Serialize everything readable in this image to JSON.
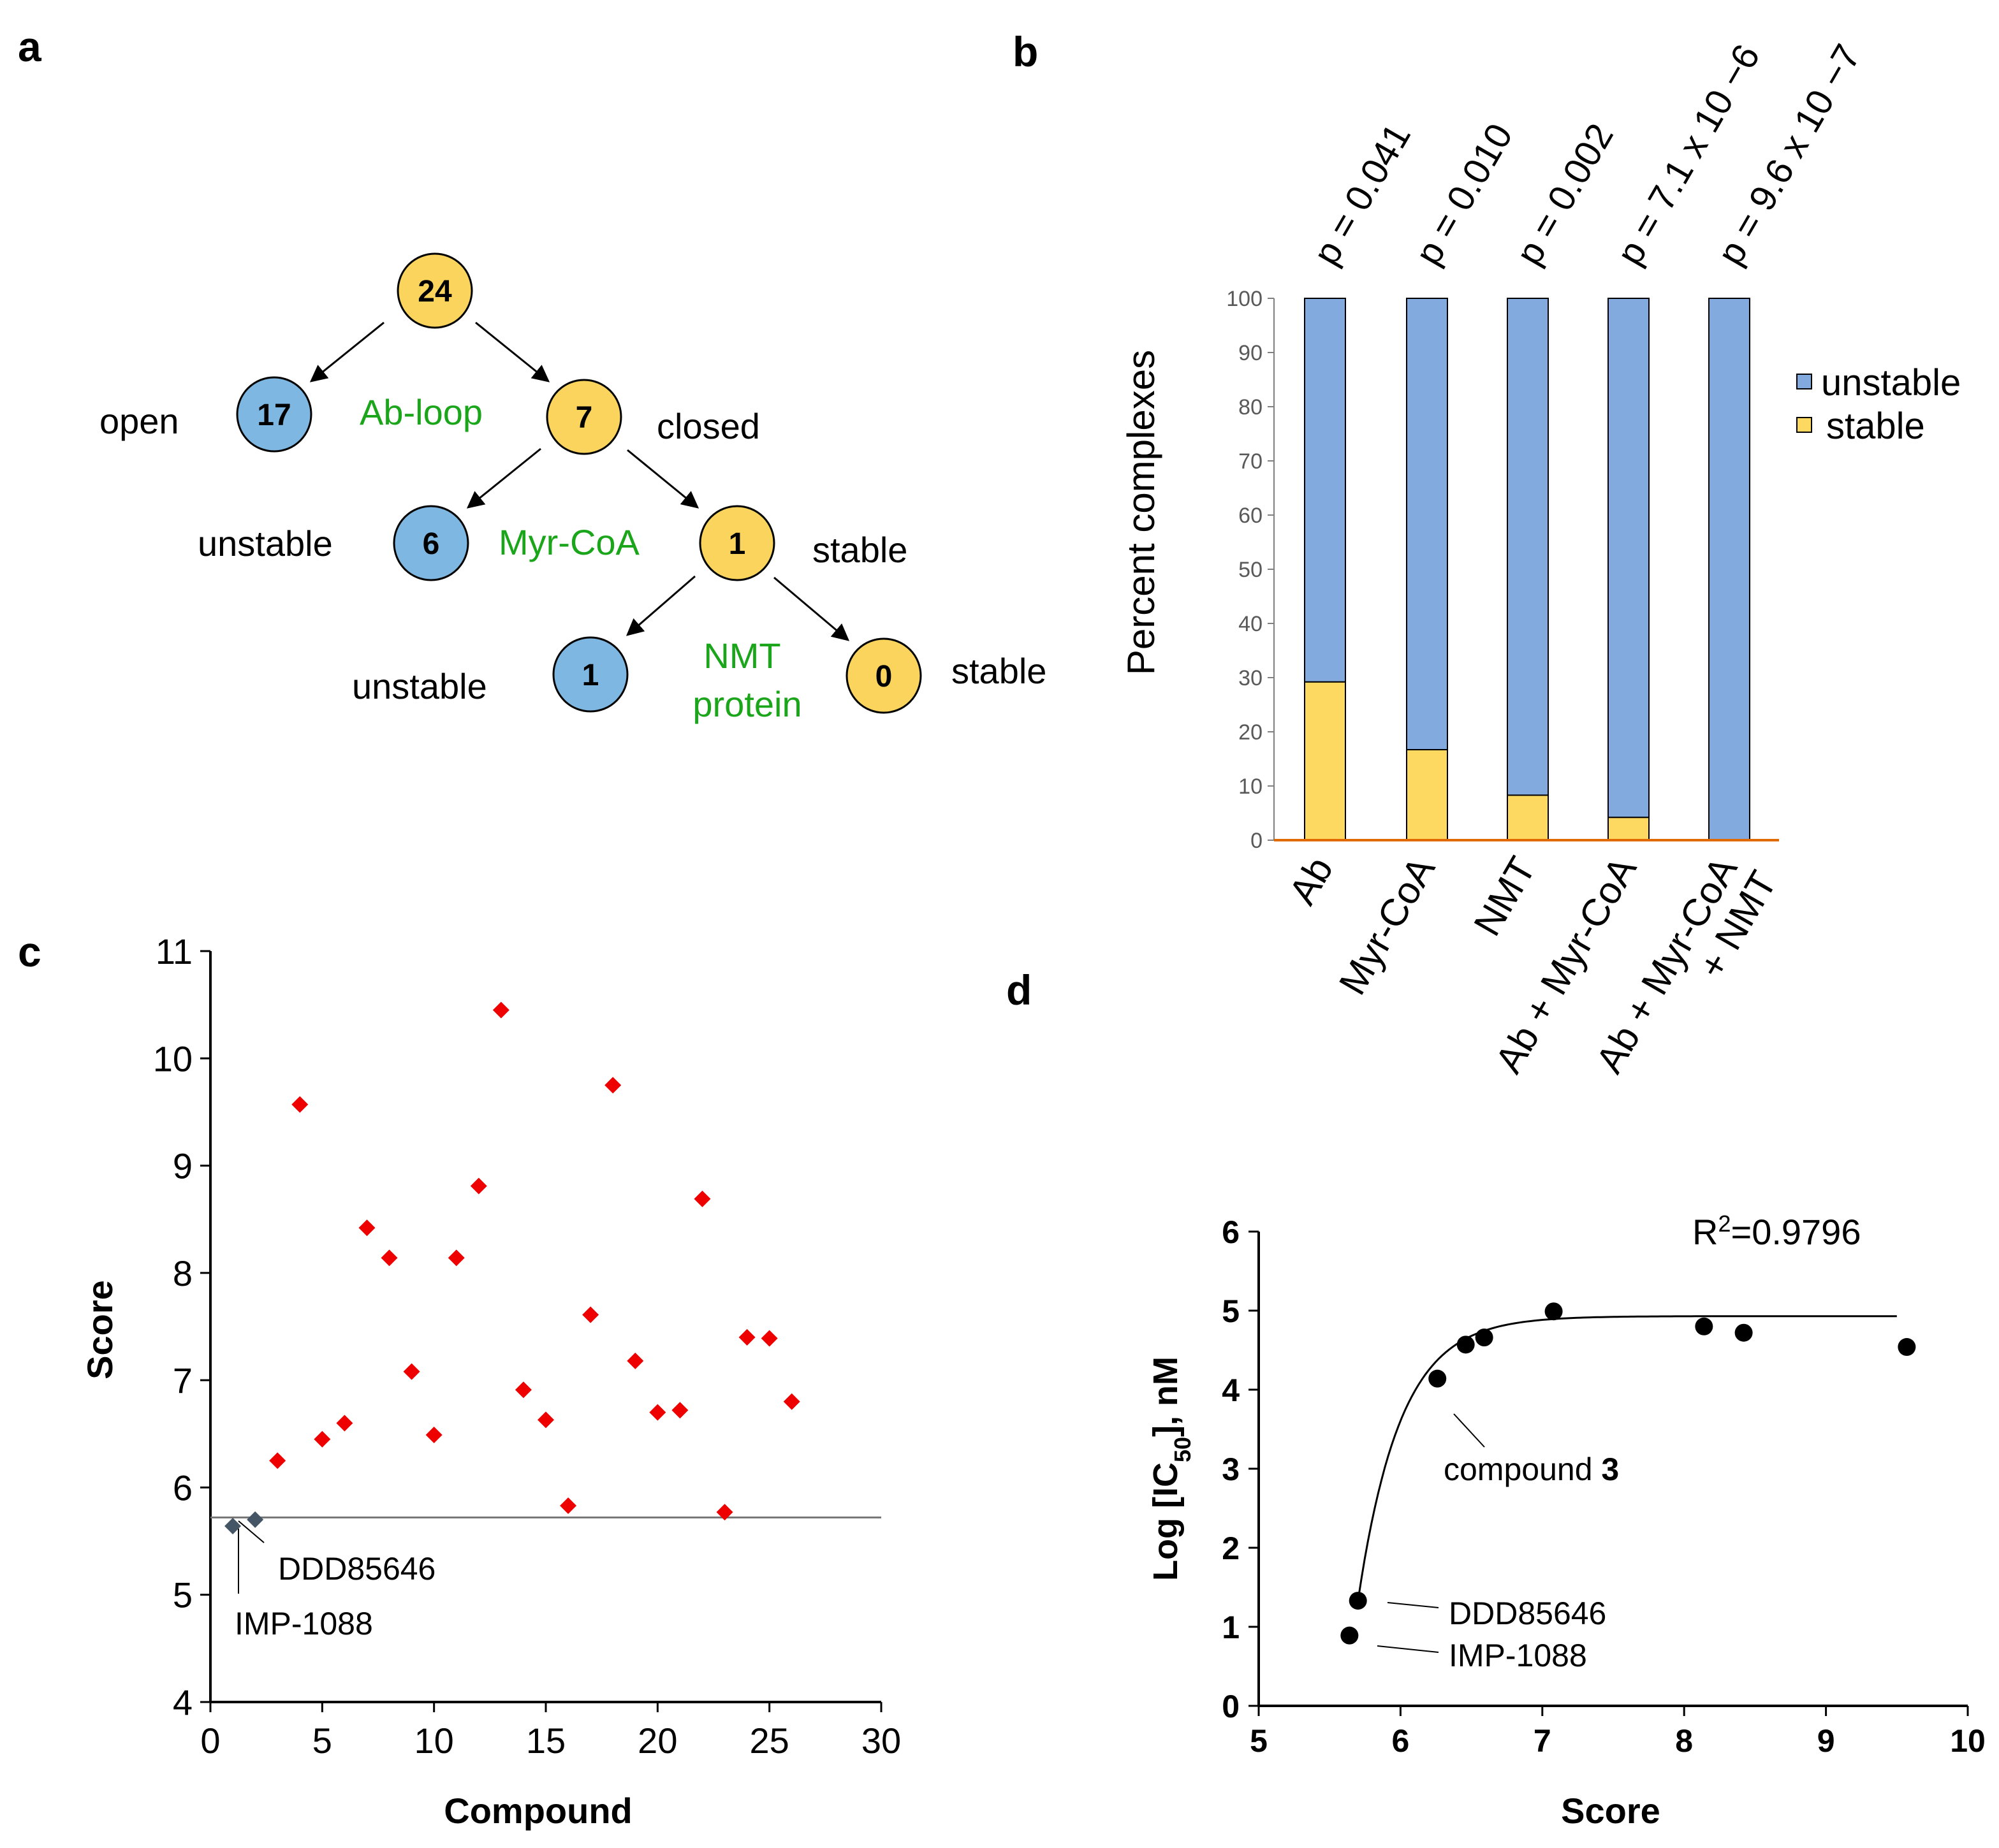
{
  "panels": {
    "a": {
      "letter": "a",
      "tree": {
        "nodes": [
          {
            "id": "root",
            "value": "24",
            "kind": "yellow"
          },
          {
            "id": "open",
            "value": "17",
            "kind": "blue"
          },
          {
            "id": "closed",
            "value": "7",
            "kind": "yellow"
          },
          {
            "id": "myr_unstable",
            "value": "6",
            "kind": "blue"
          },
          {
            "id": "myr_stable",
            "value": "1",
            "kind": "yellow"
          },
          {
            "id": "nmt_unstable",
            "value": "1",
            "kind": "blue"
          },
          {
            "id": "nmt_stable",
            "value": "0",
            "kind": "yellow"
          }
        ],
        "state_labels": [
          "open",
          "closed",
          "unstable",
          "stable",
          "unstable",
          "stable"
        ],
        "condition_labels": [
          "Ab-loop",
          "Myr-CoA",
          "NMT",
          "protein"
        ]
      }
    },
    "b": {
      "letter": "b"
    },
    "c": {
      "letter": "c"
    },
    "d": {
      "letter": "d"
    }
  },
  "colors": {
    "yellow": "#fad45c",
    "blue": "#7db7e2",
    "bar_unstable": "#82aadf",
    "bar_stable": "#fed962",
    "green_text": "#1aa51a",
    "red_marker": "#ee0000",
    "slate_marker": "#445566",
    "baseline_orange": "#e06a00"
  },
  "chart_data": [
    {
      "panel": "b",
      "type": "bar",
      "stacked": true,
      "categories": [
        "Ab",
        "Myr-CoA",
        "NMT",
        "Ab + Myr-CoA",
        "Ab + Myr-CoA\n+ NMT"
      ],
      "category_lines": [
        [
          "Ab"
        ],
        [
          "Myr-CoA"
        ],
        [
          "NMT"
        ],
        [
          "Ab + Myr-CoA"
        ],
        [
          "Ab + Myr-CoA",
          "+ NMT"
        ]
      ],
      "series": [
        {
          "name": "stable",
          "values": [
            29.2,
            16.7,
            8.3,
            4.2,
            0
          ]
        },
        {
          "name": "unstable",
          "values": [
            70.8,
            83.3,
            91.7,
            95.8,
            100
          ]
        }
      ],
      "p_values": [
        "p = 0.041",
        "p = 0.010",
        "p = 0.002",
        "p = 7.1 x 10 −6",
        "p = 9.6 x 10 −7"
      ],
      "ylabel": "Percent complexes",
      "ylim": [
        0,
        100
      ],
      "yticks": [
        0,
        10,
        20,
        30,
        40,
        50,
        60,
        70,
        80,
        90,
        100
      ],
      "legend": [
        "unstable",
        "stable"
      ],
      "legend_position": "right"
    },
    {
      "panel": "c",
      "type": "scatter",
      "xlabel": "Compound",
      "ylabel": "Score",
      "xlim": [
        0,
        30
      ],
      "ylim": [
        4,
        11
      ],
      "xticks": [
        0,
        5,
        10,
        15,
        20,
        25,
        30
      ],
      "yticks": [
        4,
        5,
        6,
        7,
        8,
        9,
        10,
        11
      ],
      "threshold_y": 5.72,
      "series": [
        {
          "x": [
            3,
            4,
            5,
            6,
            7,
            8,
            9,
            10,
            11,
            12,
            13,
            14,
            15,
            16,
            17,
            18,
            19,
            20,
            21,
            22,
            23,
            24,
            25,
            26
          ],
          "y": [
            6.25,
            9.57,
            6.45,
            6.6,
            8.42,
            8.14,
            7.08,
            6.49,
            8.14,
            8.81,
            10.45,
            6.91,
            6.63,
            5.83,
            7.61,
            9.75,
            7.18,
            6.7,
            6.72,
            8.69,
            5.77,
            7.4,
            7.39,
            6.8
          ]
        },
        {
          "x": [
            1,
            2
          ],
          "y": [
            5.64,
            5.7
          ]
        }
      ],
      "annotations": [
        "DDD85646",
        "IMP-1088"
      ]
    },
    {
      "panel": "d",
      "type": "scatter",
      "xlabel": "Score",
      "ylabel": "Log [IC",
      "ylabel_sub": "50",
      "ylabel_tail": "], nM",
      "xlim": [
        5,
        10
      ],
      "ylim": [
        0,
        6
      ],
      "xticks": [
        5,
        6,
        7,
        8,
        9,
        10
      ],
      "yticks": [
        0,
        1,
        2,
        3,
        4,
        5,
        6
      ],
      "x": [
        5.64,
        5.7,
        6.26,
        6.46,
        6.59,
        7.08,
        8.14,
        8.42,
        9.57
      ],
      "y": [
        0.89,
        1.33,
        4.14,
        4.57,
        4.66,
        4.99,
        4.8,
        4.72,
        4.54
      ],
      "fit_curve_x_range": [
        5.7,
        9.5
      ],
      "r_squared_label": "R",
      "r_squared_sup": "2",
      "r_squared_value": "=0.9796",
      "annotations": {
        "compound": "compound ",
        "compound_bold": "3",
        "ddd": "DDD85646",
        "imp": "IMP-1088"
      }
    }
  ]
}
